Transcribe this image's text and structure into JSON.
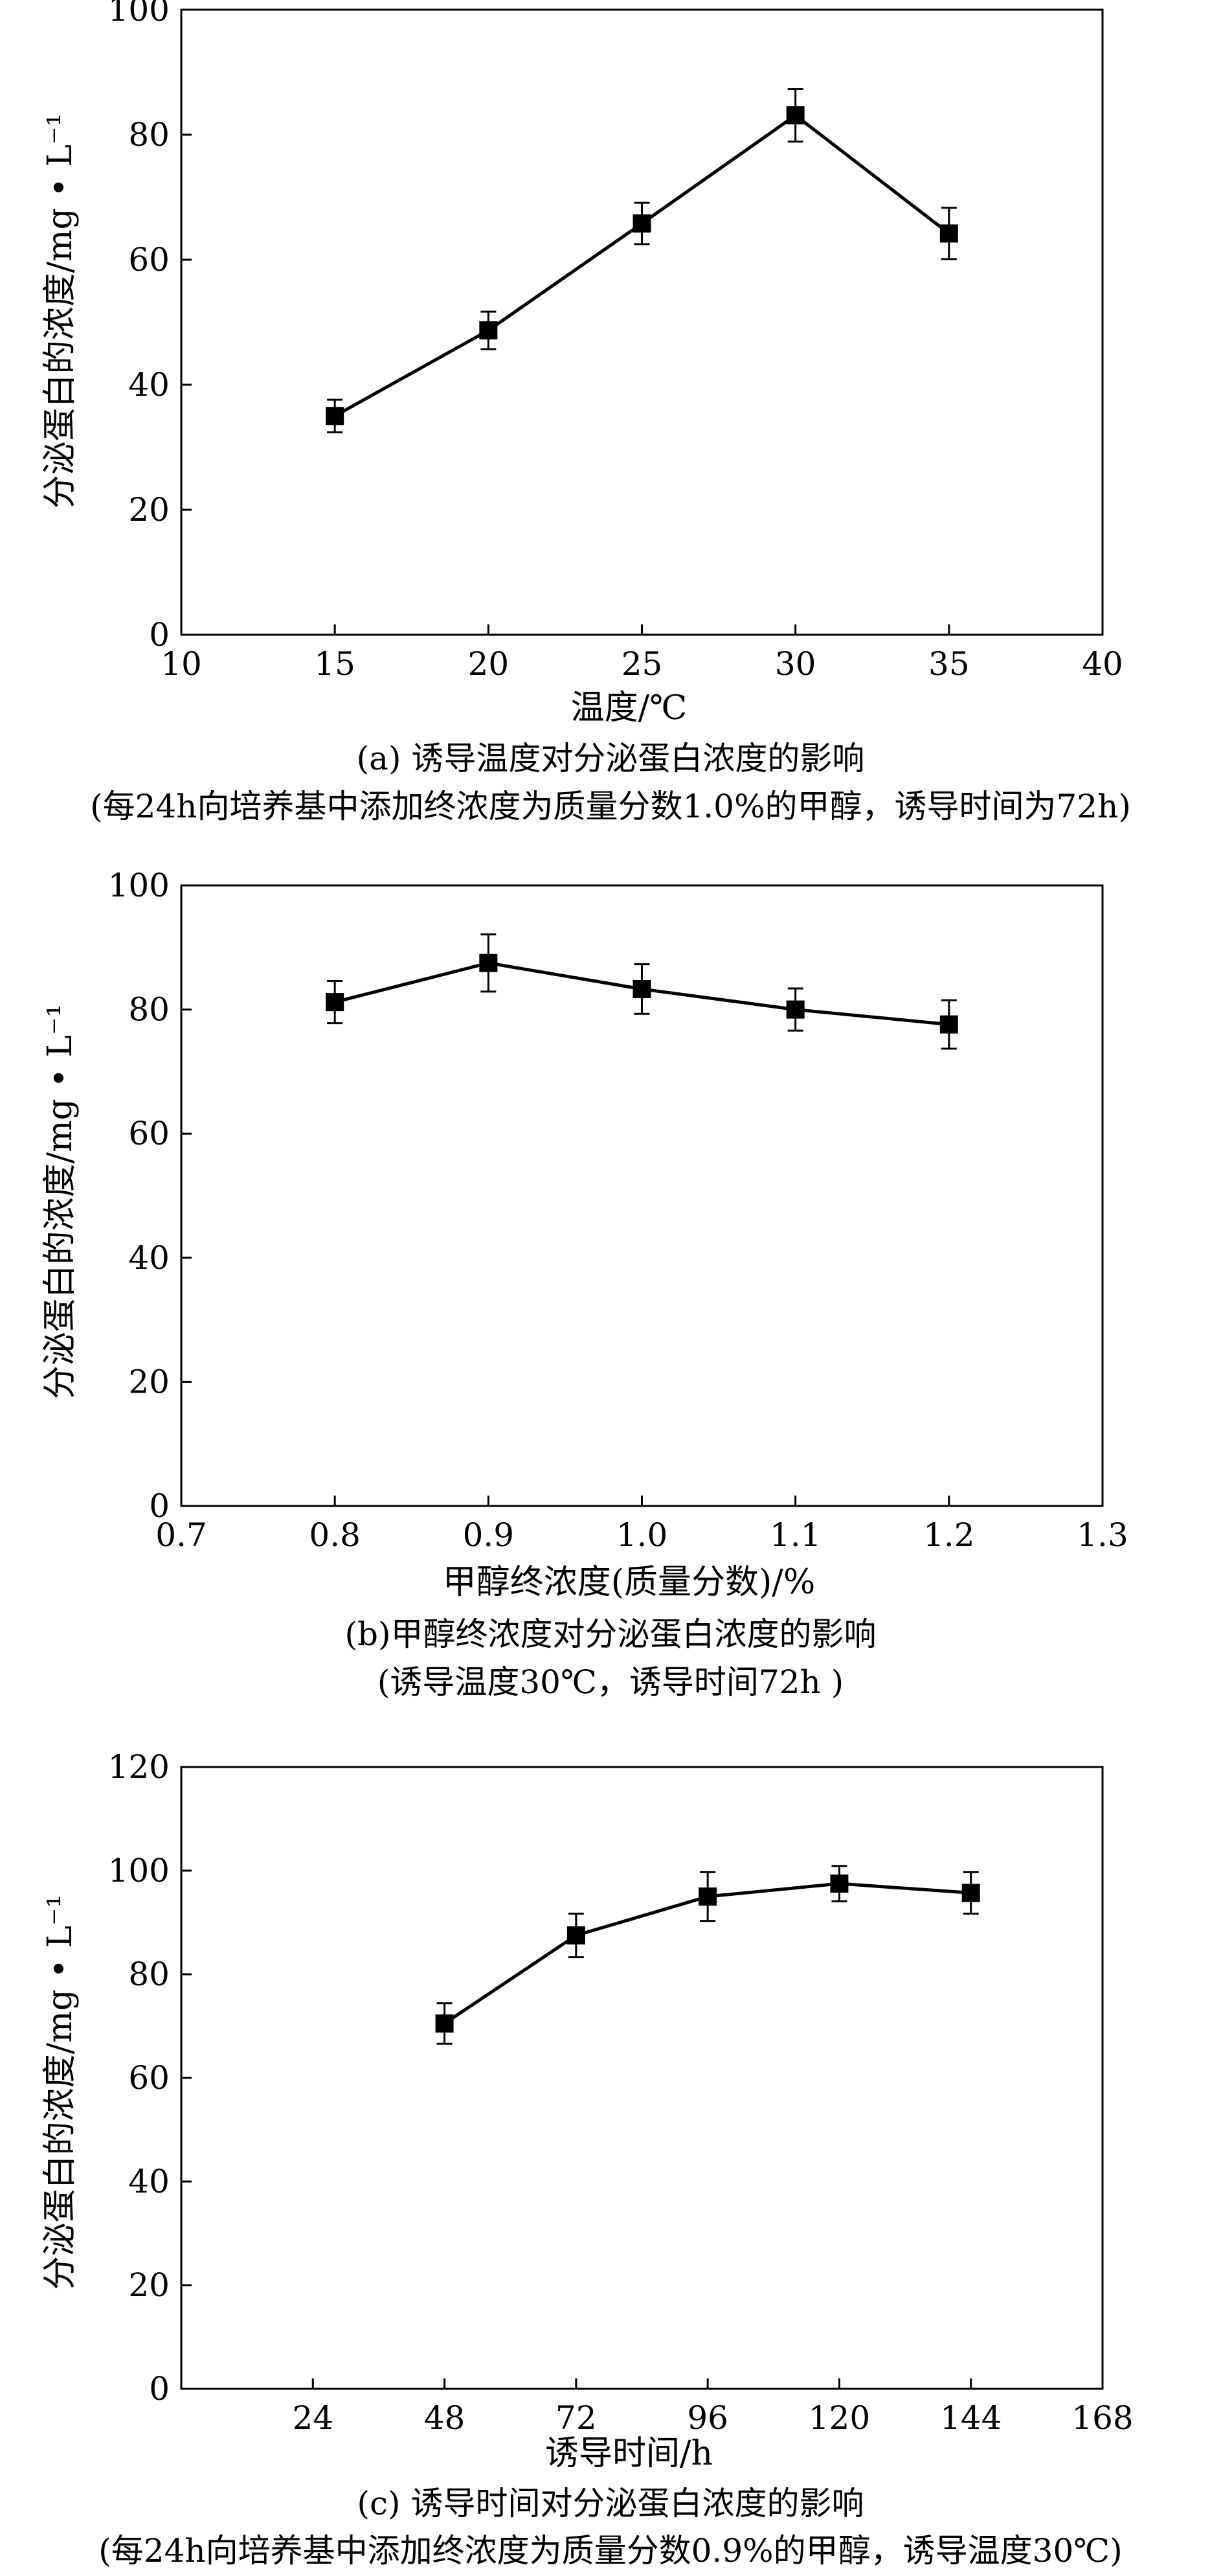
{
  "chart_data": [
    {
      "type": "line",
      "x": [
        15,
        20,
        25,
        30,
        35
      ],
      "series": [
        {
          "values": [
            35,
            48.7,
            65.8,
            83.1,
            64.2
          ],
          "errors": [
            2.6,
            3.0,
            3.3,
            4.2,
            4.1
          ]
        }
      ],
      "xlim": [
        10,
        40
      ],
      "ylim": [
        0,
        100
      ],
      "xticks": [
        "10",
        "15",
        "20",
        "25",
        "30",
        "35",
        "40"
      ],
      "yticks": [
        "0",
        "20",
        "40",
        "60",
        "80",
        "100"
      ],
      "xlabel": "温度/℃",
      "ylabel": "分泌蛋白的浓度/mg • L⁻¹",
      "caption": "(a) 诱导温度对分泌蛋白浓度的影响",
      "note": "(每24h向培养基中添加终浓度为质量分数1.0%的甲醇，诱导时间为72h)",
      "grid": false,
      "marker": "square"
    },
    {
      "type": "line",
      "x": [
        0.8,
        0.9,
        1.0,
        1.1,
        1.2
      ],
      "series": [
        {
          "values": [
            81.2,
            87.5,
            83.3,
            80.0,
            77.6
          ],
          "errors": [
            3.4,
            4.6,
            4.0,
            3.4,
            3.9
          ]
        }
      ],
      "xlim": [
        0.7,
        1.3
      ],
      "ylim": [
        0,
        100
      ],
      "xticks": [
        "0.7",
        "0.8",
        "0.9",
        "1.0",
        "1.1",
        "1.2",
        "1.3"
      ],
      "yticks": [
        "0",
        "20",
        "40",
        "60",
        "80",
        "100"
      ],
      "xlabel": "甲醇终浓度(质量分数)/%",
      "ylabel": "分泌蛋白的浓度/mg • L⁻¹",
      "caption": "(b)甲醇终浓度对分泌蛋白浓度的影响",
      "note": "(诱导温度30℃，诱导时间72h )",
      "grid": false,
      "marker": "square"
    },
    {
      "type": "line",
      "x": [
        48,
        72,
        96,
        120,
        144
      ],
      "series": [
        {
          "values": [
            70.5,
            87.5,
            95.0,
            97.5,
            95.7
          ],
          "errors": [
            3.9,
            4.2,
            4.7,
            3.4,
            4.0
          ]
        }
      ],
      "xlim": [
        0,
        168
      ],
      "ylim": [
        0,
        120
      ],
      "xticks": [
        "24",
        "48",
        "72",
        "96",
        "120",
        "144",
        "168"
      ],
      "yticks": [
        "0",
        "20",
        "40",
        "60",
        "80",
        "100",
        "120"
      ],
      "xlabel": "诱导时间/h",
      "ylabel": "分泌蛋白的浓度/mg • L⁻¹",
      "caption": "(c) 诱导时间对分泌蛋白浓度的影响",
      "note": "(每24h向培养基中添加终浓度为质量分数0.9%的甲醇，诱导温度30℃)",
      "grid": false,
      "marker": "square"
    }
  ]
}
